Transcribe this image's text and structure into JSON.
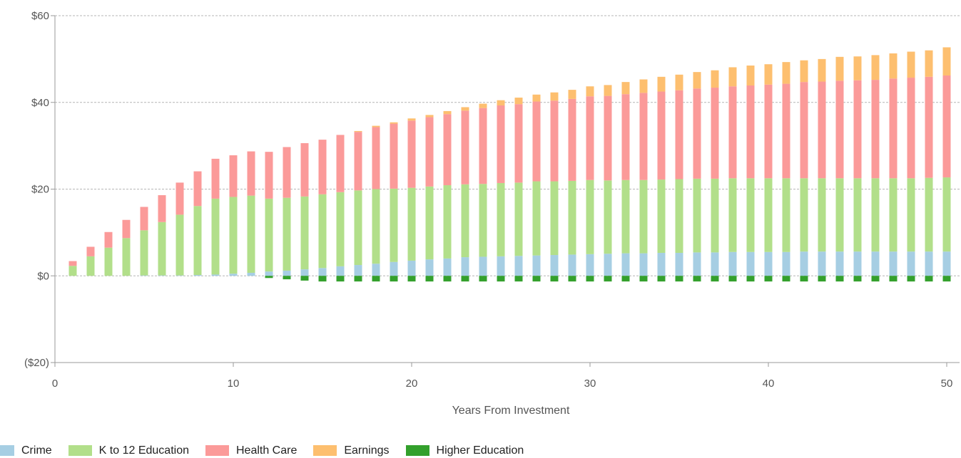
{
  "chart_data": {
    "type": "bar",
    "stacked": true,
    "xlabel": "Years From Investment",
    "ylabel": "",
    "xlim": [
      0,
      50
    ],
    "ylim": [
      -20,
      60
    ],
    "x_ticks": [
      "0",
      "10",
      "20",
      "30",
      "40",
      "50"
    ],
    "y_ticks": [
      "$60",
      "$40",
      "$20",
      "$0",
      "($20)"
    ],
    "grid": "horizontal dashed",
    "legend_position": "bottom",
    "x": [
      1,
      2,
      3,
      4,
      5,
      6,
      7,
      8,
      9,
      10,
      11,
      12,
      13,
      14,
      15,
      16,
      17,
      18,
      19,
      20,
      21,
      22,
      23,
      24,
      25,
      26,
      27,
      28,
      29,
      30,
      31,
      32,
      33,
      34,
      35,
      36,
      37,
      38,
      39,
      40,
      41,
      42,
      43,
      44,
      45,
      46,
      47,
      48,
      49,
      50
    ],
    "series": [
      {
        "name": "Crime",
        "color": "#a6cee3",
        "values": [
          0,
          0,
          0,
          0,
          0.1,
          0.1,
          0.1,
          0.2,
          0.3,
          0.5,
          0.7,
          1.0,
          1.2,
          1.5,
          1.8,
          2.2,
          2.5,
          2.8,
          3.2,
          3.5,
          3.8,
          4.0,
          4.3,
          4.4,
          4.5,
          4.6,
          4.7,
          4.8,
          4.9,
          5.0,
          5.1,
          5.2,
          5.2,
          5.3,
          5.3,
          5.4,
          5.4,
          5.5,
          5.5,
          5.5,
          5.5,
          5.6,
          5.6,
          5.6,
          5.6,
          5.6,
          5.6,
          5.6,
          5.6,
          5.6
        ]
      },
      {
        "name": "K to 12 Education",
        "color": "#b2df8a",
        "values": [
          2.3,
          4.5,
          6.5,
          8.7,
          10.4,
          12.3,
          14.0,
          15.9,
          17.5,
          17.7,
          17.8,
          16.8,
          16.8,
          16.8,
          17.0,
          17.1,
          17.2,
          17.2,
          16.9,
          16.8,
          16.8,
          16.9,
          16.8,
          16.8,
          16.9,
          16.9,
          17.1,
          17.0,
          17.0,
          17.1,
          16.9,
          16.9,
          16.9,
          16.9,
          17.0,
          17.0,
          17.0,
          17.0,
          17.0,
          17.0,
          17.0,
          16.9,
          16.9,
          16.9,
          16.9,
          16.9,
          16.9,
          16.9,
          17.0,
          17.1
        ]
      },
      {
        "name": "Health Care",
        "color": "#fb9a99",
        "values": [
          1.1,
          2.2,
          3.6,
          4.2,
          5.4,
          6.2,
          7.4,
          8.0,
          9.2,
          9.6,
          10.2,
          10.8,
          11.7,
          12.3,
          12.6,
          13.2,
          13.5,
          14.3,
          15.0,
          15.5,
          16.0,
          16.4,
          17.0,
          17.5,
          17.9,
          18.1,
          18.4,
          18.6,
          18.9,
          19.3,
          19.5,
          19.8,
          20.1,
          20.3,
          20.5,
          20.8,
          21.0,
          21.2,
          21.4,
          21.6,
          21.8,
          22.2,
          22.3,
          22.5,
          22.6,
          22.7,
          23.0,
          23.2,
          23.3,
          23.5
        ]
      },
      {
        "name": "Earnings",
        "color": "#fdbf6f",
        "values": [
          0,
          0,
          0,
          0,
          0,
          0,
          0,
          0,
          0,
          0,
          0,
          0,
          0,
          0,
          0,
          0,
          0.2,
          0.3,
          0.3,
          0.5,
          0.5,
          0.7,
          0.8,
          1.0,
          1.2,
          1.5,
          1.6,
          1.9,
          2.1,
          2.3,
          2.5,
          2.8,
          3.1,
          3.4,
          3.6,
          3.8,
          4.0,
          4.4,
          4.6,
          4.7,
          5.0,
          5.0,
          5.2,
          5.5,
          5.5,
          5.7,
          5.8,
          6.0,
          6.1,
          6.5
        ]
      },
      {
        "name": "Higher Education",
        "color": "#33a02c",
        "values": [
          0,
          0,
          0,
          0,
          0,
          0,
          0,
          0,
          0,
          0,
          0,
          -0.5,
          -0.8,
          -1.1,
          -1.3,
          -1.3,
          -1.3,
          -1.3,
          -1.3,
          -1.3,
          -1.3,
          -1.3,
          -1.3,
          -1.3,
          -1.3,
          -1.3,
          -1.3,
          -1.3,
          -1.3,
          -1.3,
          -1.3,
          -1.3,
          -1.3,
          -1.3,
          -1.3,
          -1.3,
          -1.3,
          -1.3,
          -1.3,
          -1.3,
          -1.3,
          -1.3,
          -1.3,
          -1.3,
          -1.3,
          -1.3,
          -1.3,
          -1.3,
          -1.3,
          -1.3
        ]
      }
    ]
  }
}
